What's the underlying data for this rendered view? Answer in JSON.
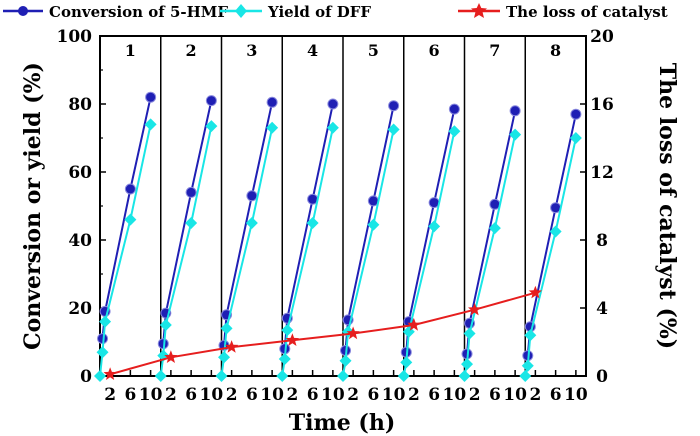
{
  "chart_data": {
    "type": "line",
    "xlabel": "Time (h)",
    "ylabel_left": "Conversion or yield (%)",
    "ylabel_right": "The loss of catalyst (%)",
    "ylim_left": [
      0,
      100
    ],
    "ylim_right": [
      0,
      20
    ],
    "yticks_left": [
      0,
      20,
      40,
      60,
      80,
      100
    ],
    "yticks_right": [
      0,
      4,
      8,
      12,
      16,
      20
    ],
    "xlim_per_panel": [
      0,
      12
    ],
    "xticks_per_panel": [
      2,
      6,
      10
    ],
    "panels": [
      "1",
      "2",
      "3",
      "4",
      "5",
      "6",
      "7",
      "8"
    ],
    "legend": [
      "Conversion of 5-HMF",
      "Yield of DFF",
      "The loss of catalyst"
    ],
    "series": [
      {
        "name": "Conversion of 5-HMF",
        "color": "#1f1fb4",
        "marker": "circle",
        "panel_x": [
          0.5,
          1,
          6,
          10
        ],
        "panels": [
          [
            11,
            19,
            55,
            82
          ],
          [
            9.5,
            18.5,
            54,
            81
          ],
          [
            9,
            18,
            53,
            80.5
          ],
          [
            8,
            17,
            52,
            80
          ],
          [
            7.5,
            16.5,
            51.5,
            79.5
          ],
          [
            7,
            16,
            51,
            78.5
          ],
          [
            6.5,
            15.5,
            50.5,
            78
          ],
          [
            6,
            14.5,
            49.5,
            77
          ]
        ]
      },
      {
        "name": "Yield of DFF",
        "color": "#19e6e6",
        "marker": "diamond",
        "panel_x": [
          0,
          0.5,
          1,
          6,
          10
        ],
        "panels": [
          [
            0,
            7,
            16,
            46,
            74
          ],
          [
            0,
            6,
            15,
            45,
            73.5
          ],
          [
            0,
            5.5,
            14,
            45,
            73
          ],
          [
            0,
            5,
            13.5,
            45,
            73
          ],
          [
            0,
            4.5,
            13,
            44.5,
            72.5
          ],
          [
            0,
            4,
            13,
            44,
            72
          ],
          [
            0,
            3.5,
            12.5,
            43.5,
            71
          ],
          [
            0,
            3,
            12,
            42.5,
            70
          ]
        ]
      },
      {
        "name": "The loss of catalyst",
        "color": "#e61e1e",
        "marker": "star",
        "x_panel": [
          1,
          2,
          3,
          4,
          5,
          6,
          7,
          8
        ],
        "values": [
          0.1,
          1.1,
          1.7,
          2.1,
          2.5,
          3.0,
          3.9,
          4.9
        ]
      }
    ]
  }
}
